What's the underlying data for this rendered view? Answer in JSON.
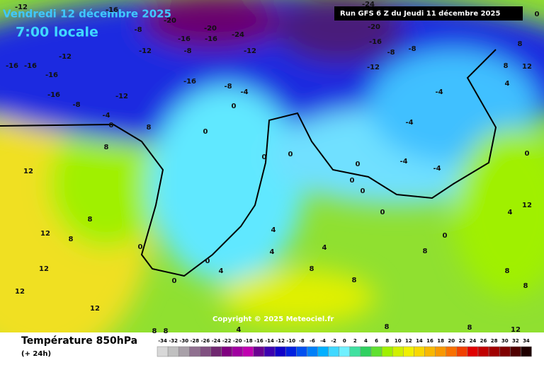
{
  "header": {
    "date": "Vendredi 12 décembre 2025",
    "time": "7:00 locale",
    "run": "Run GFS 6 Z du Jeudi 11 décembre 2025"
  },
  "map": {
    "copyright": "Copyright © 2025 Meteociel.fr",
    "labels": [
      -12,
      -16,
      -16,
      -16,
      -16,
      -12,
      -8,
      -12,
      -4,
      0,
      -8,
      -12,
      -16,
      -20,
      -16,
      -8,
      -16,
      -20,
      -24,
      -12,
      -4,
      -16,
      -8,
      -24,
      -20,
      -16,
      -8,
      -8,
      -12,
      -4,
      -4,
      -4,
      -4,
      0,
      0,
      0,
      0,
      0,
      0,
      0,
      0,
      0,
      8,
      8,
      12,
      12,
      12,
      12,
      8,
      8,
      12,
      0,
      0,
      0,
      4,
      4,
      4,
      8,
      8,
      8,
      8,
      4,
      12,
      12,
      8,
      0,
      0,
      4,
      8,
      12,
      8,
      8,
      8,
      4,
      8,
      4,
      8
    ]
  },
  "legend": {
    "title": "Température 850hPa",
    "subtitle": "(+ 24h)",
    "ticks": [
      -34,
      -32,
      -30,
      -28,
      -26,
      -24,
      -22,
      -20,
      -18,
      -16,
      -14,
      -12,
      -10,
      -8,
      -6,
      -4,
      -2,
      0,
      2,
      4,
      6,
      8,
      10,
      12,
      14,
      16,
      18,
      20,
      22,
      24,
      26,
      28,
      30,
      32,
      34
    ],
    "colors": [
      "#d8d8d8",
      "#c0c0c0",
      "#a8a0a8",
      "#907090",
      "#805080",
      "#702870",
      "#800080",
      "#a000a0",
      "#c000b0",
      "#6a0090",
      "#3c00b0",
      "#1000c8",
      "#0020e0",
      "#0050f0",
      "#0080f8",
      "#00b0ff",
      "#40d8ff",
      "#70f0ff",
      "#40e0a0",
      "#30d060",
      "#60e030",
      "#a0f000",
      "#d0f000",
      "#f0f000",
      "#f8d800",
      "#f8b800",
      "#f89800",
      "#f87000",
      "#f04000",
      "#e00000",
      "#c00000",
      "#a00000",
      "#800000",
      "#500000",
      "#200000"
    ]
  }
}
